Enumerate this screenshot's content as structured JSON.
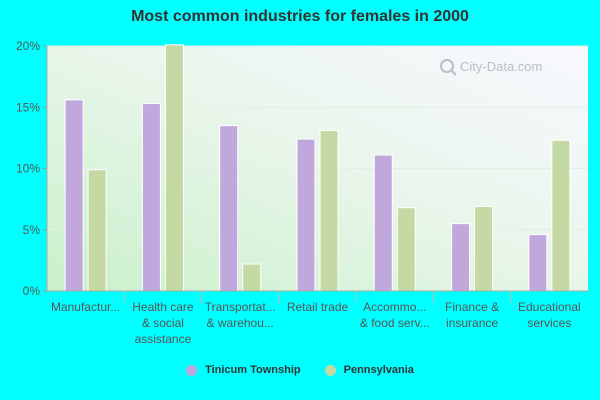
{
  "title": "Most common industries for females in 2000",
  "watermark": "City-Data.com",
  "colors": {
    "series_1": "#c0a8dc",
    "series_2": "#c5d9a4"
  },
  "chart_data": {
    "type": "bar",
    "title": "Most common industries for females in 2000",
    "categories": [
      [
        "Manufactur..."
      ],
      [
        "Health care",
        "& social",
        "assistance"
      ],
      [
        "Transportat...",
        "& warehou..."
      ],
      [
        "Retail trade"
      ],
      [
        "Accommo...",
        "& food serv..."
      ],
      [
        "Finance &",
        "insurance"
      ],
      [
        "Educational",
        "services"
      ]
    ],
    "series": [
      {
        "name": "Tinicum Township",
        "values": [
          15.6,
          15.3,
          13.5,
          12.4,
          11.1,
          5.5,
          4.6
        ]
      },
      {
        "name": "Pennsylvania",
        "values": [
          9.9,
          20.1,
          2.2,
          13.1,
          6.8,
          6.9,
          12.3
        ]
      }
    ],
    "yticks": [
      "0%",
      "5%",
      "10%",
      "15%",
      "20%"
    ],
    "ylim": [
      0,
      20
    ],
    "grid": true,
    "legend": "bottom-center"
  }
}
